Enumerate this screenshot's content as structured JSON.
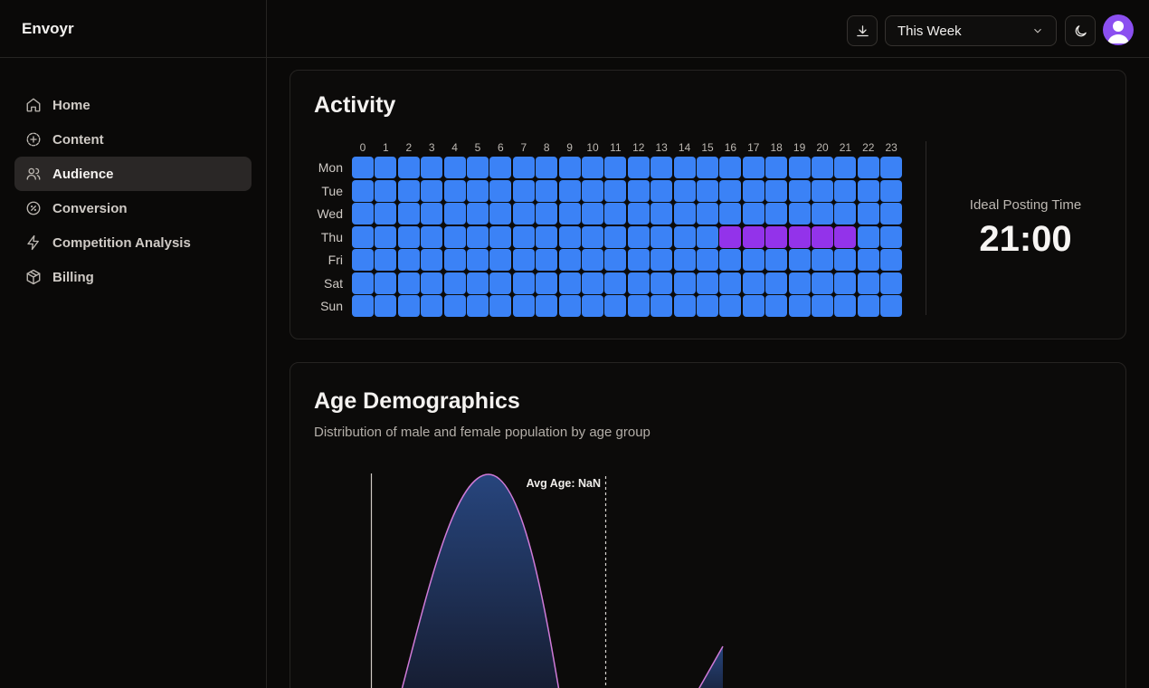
{
  "app": {
    "brand": "Envoyr"
  },
  "sidebar": {
    "items": [
      {
        "label": "Home",
        "icon": "home-icon",
        "active": false
      },
      {
        "label": "Content",
        "icon": "circle-plus-icon",
        "active": false
      },
      {
        "label": "Audience",
        "icon": "users-icon",
        "active": true
      },
      {
        "label": "Conversion",
        "icon": "circle-percent-icon",
        "active": false
      },
      {
        "label": "Competition Analysis",
        "icon": "zap-icon",
        "active": false
      },
      {
        "label": "Billing",
        "icon": "package-icon",
        "active": false
      }
    ]
  },
  "header": {
    "download_icon": "download-icon",
    "range_select": {
      "value": "This Week"
    },
    "theme_icon": "moon-icon",
    "avatar_icon": "user-avatar-icon"
  },
  "activity": {
    "title": "Activity",
    "hours": [
      "0",
      "1",
      "2",
      "3",
      "4",
      "5",
      "6",
      "7",
      "8",
      "9",
      "10",
      "11",
      "12",
      "13",
      "14",
      "15",
      "16",
      "17",
      "18",
      "19",
      "20",
      "21",
      "22",
      "23"
    ],
    "days": [
      "Mon",
      "Tue",
      "Wed",
      "Thu",
      "Fri",
      "Sat",
      "Sun"
    ],
    "highlight": {
      "day": "Thu",
      "hours": [
        16,
        17,
        18,
        19,
        20,
        21
      ]
    },
    "colors": {
      "normal": "#3b82f6",
      "peak": "#9333ea"
    },
    "ideal_label": "Ideal Posting Time",
    "ideal_time": "21:00"
  },
  "age": {
    "title": "Age Demographics",
    "subtitle": "Distribution of male and female population by age group",
    "avg_label": "Avg Age: NaN",
    "colors": {
      "stroke": "#d07bd8",
      "fill_top": "#27457d",
      "fill_bottom": "#151a2c"
    }
  }
}
